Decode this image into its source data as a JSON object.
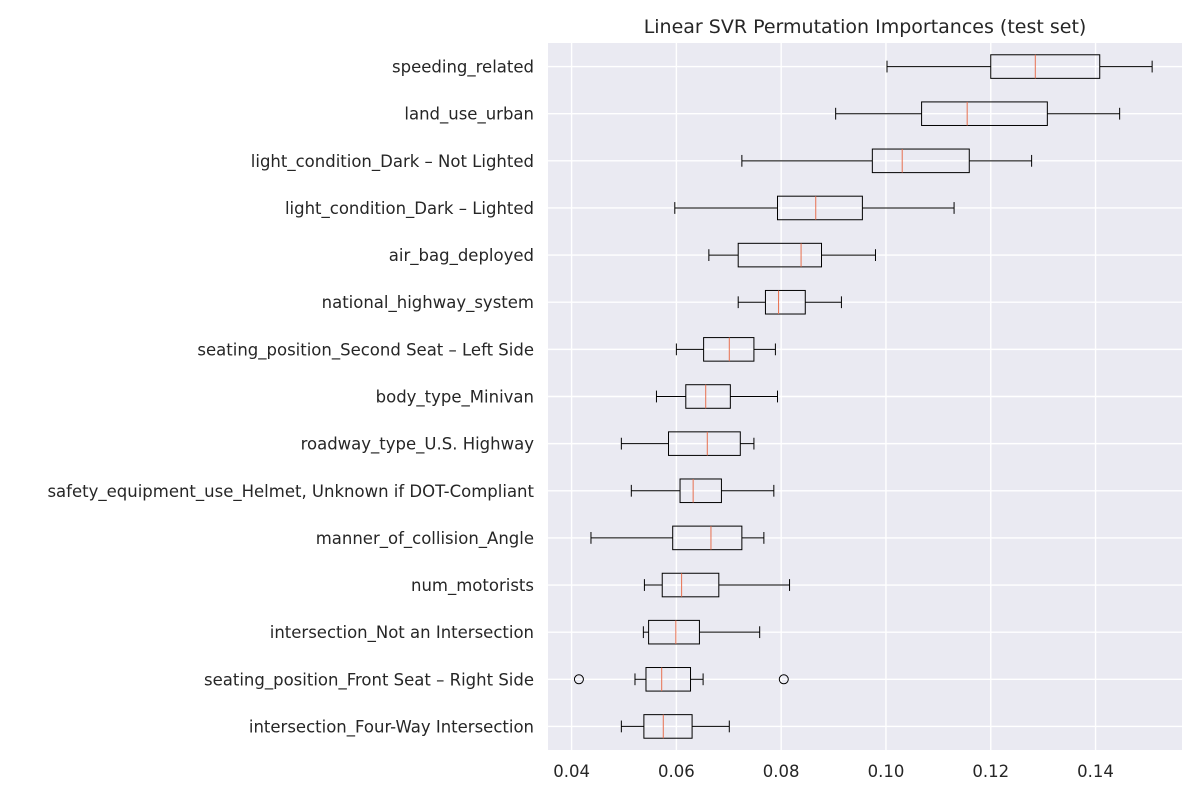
{
  "chart_data": {
    "type": "boxplot",
    "orientation": "horizontal",
    "title": "Linear SVR Permutation Importances (test set)",
    "xlabel": "",
    "ylabel": "",
    "xlim": [
      0.0355,
      0.1565
    ],
    "x_ticks": [
      0.04,
      0.06,
      0.08,
      0.1,
      0.12,
      0.14
    ],
    "x_tick_labels": [
      "0.04",
      "0.06",
      "0.08",
      "0.10",
      "0.12",
      "0.14"
    ],
    "grid": true,
    "colors": {
      "background": "#eaeaf2",
      "grid": "#ffffff",
      "box": "#000000",
      "median": "#e8704f",
      "text": "#262626"
    },
    "categories": [
      "speeding_related",
      "land_use_urban",
      "light_condition_Dark – Not Lighted",
      "light_condition_Dark – Lighted",
      "air_bag_deployed",
      "national_highway_system",
      "seating_position_Second Seat – Left Side",
      "body_type_Minivan",
      "roadway_type_U.S. Highway",
      "safety_equipment_use_Helmet, Unknown if DOT-Compliant",
      "manner_of_collision_Angle",
      "num_motorists",
      "intersection_Not an Intersection",
      "seating_position_Front Seat – Right Side",
      "intersection_Four-Way Intersection"
    ],
    "boxes": [
      {
        "whisker_low": 0.1002,
        "q1": 0.12,
        "median": 0.1285,
        "q3": 0.1408,
        "whisker_high": 0.1508,
        "outliers": []
      },
      {
        "whisker_low": 0.0904,
        "q1": 0.1068,
        "median": 0.1155,
        "q3": 0.1308,
        "whisker_high": 0.1446,
        "outliers": []
      },
      {
        "whisker_low": 0.0725,
        "q1": 0.0974,
        "median": 0.1031,
        "q3": 0.1159,
        "whisker_high": 0.1278,
        "outliers": []
      },
      {
        "whisker_low": 0.0597,
        "q1": 0.0793,
        "median": 0.0866,
        "q3": 0.0955,
        "whisker_high": 0.113,
        "outliers": []
      },
      {
        "whisker_low": 0.0662,
        "q1": 0.0718,
        "median": 0.0838,
        "q3": 0.0877,
        "whisker_high": 0.098,
        "outliers": []
      },
      {
        "whisker_low": 0.0718,
        "q1": 0.077,
        "median": 0.0795,
        "q3": 0.0846,
        "whisker_high": 0.0915,
        "outliers": []
      },
      {
        "whisker_low": 0.06,
        "q1": 0.0652,
        "median": 0.0701,
        "q3": 0.0748,
        "whisker_high": 0.0789,
        "outliers": []
      },
      {
        "whisker_low": 0.0562,
        "q1": 0.0618,
        "median": 0.0656,
        "q3": 0.0703,
        "whisker_high": 0.0793,
        "outliers": []
      },
      {
        "whisker_low": 0.0495,
        "q1": 0.0585,
        "median": 0.0659,
        "q3": 0.0722,
        "whisker_high": 0.0748,
        "outliers": []
      },
      {
        "whisker_low": 0.0514,
        "q1": 0.0607,
        "median": 0.0632,
        "q3": 0.0686,
        "whisker_high": 0.0786,
        "outliers": []
      },
      {
        "whisker_low": 0.0437,
        "q1": 0.0593,
        "median": 0.0666,
        "q3": 0.0725,
        "whisker_high": 0.0767,
        "outliers": []
      },
      {
        "whisker_low": 0.0539,
        "q1": 0.0573,
        "median": 0.061,
        "q3": 0.0681,
        "whisker_high": 0.0816,
        "outliers": []
      },
      {
        "whisker_low": 0.0537,
        "q1": 0.0547,
        "median": 0.0599,
        "q3": 0.0644,
        "whisker_high": 0.0759,
        "outliers": []
      },
      {
        "whisker_low": 0.0521,
        "q1": 0.0542,
        "median": 0.0572,
        "q3": 0.0627,
        "whisker_high": 0.0651,
        "outliers": [
          0.0414,
          0.0805
        ]
      },
      {
        "whisker_low": 0.0495,
        "q1": 0.0538,
        "median": 0.0575,
        "q3": 0.063,
        "whisker_high": 0.0701,
        "outliers": []
      }
    ]
  }
}
